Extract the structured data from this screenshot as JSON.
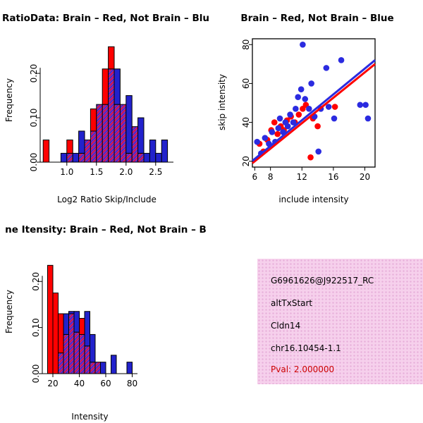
{
  "figure": {
    "background": "#FFFFFF"
  },
  "chart_data": [
    {
      "id": "ratio_hist",
      "type": "bar",
      "subtype": "overlaid_histogram",
      "title": "RatioData: Brain – Red, Not Brain – Blu",
      "xlabel": "Log2 Ratio Skip/Include",
      "ylabel": "Frequency",
      "xlim": [
        0.55,
        2.8
      ],
      "ylim": [
        0,
        0.27
      ],
      "bin_start": 0.6,
      "bin_width": 0.1,
      "xtick_vals": [
        1.0,
        1.5,
        2.0,
        2.5
      ],
      "xtick_labels": [
        "1.0",
        "1.5",
        "2.0",
        "2.5"
      ],
      "ytick_vals": [
        0,
        0.1,
        0.2
      ],
      "ytick_labels": [
        "0.00",
        "0.10",
        "0.20"
      ],
      "overlap_color": "#8D2FB8",
      "series": [
        {
          "name": "brain",
          "color": "#FF0000",
          "values": [
            0.05,
            0,
            0,
            0,
            0.05,
            0,
            0.02,
            0.05,
            0.12,
            0.13,
            0.21,
            0.26,
            0.13,
            0.13,
            0.02,
            0.08,
            0.02,
            0,
            0,
            0,
            0
          ]
        },
        {
          "name": "not-brain",
          "color": "#2222CC",
          "values": [
            0,
            0,
            0,
            0.02,
            0.02,
            0.02,
            0.07,
            0.05,
            0.07,
            0.13,
            0.13,
            0.21,
            0.21,
            0.13,
            0.15,
            0.08,
            0.1,
            0.02,
            0.05,
            0.02,
            0.05
          ]
        }
      ]
    },
    {
      "id": "scatter",
      "type": "scatter",
      "title": "Brain – Red, Not Brain – Blue",
      "xlabel": "include intensity",
      "ylabel": "skip intensity",
      "xlim": [
        5.7,
        21.3
      ],
      "ylim": [
        17,
        83
      ],
      "xtick_vals": [
        6,
        8,
        12,
        16,
        20
      ],
      "xtick_labels": [
        "6",
        "8",
        "12",
        "16",
        "20"
      ],
      "ytick_vals": [
        20,
        40,
        60,
        80
      ],
      "ytick_labels": [
        "20",
        "40",
        "60",
        "80"
      ],
      "series": [
        {
          "name": "brain",
          "color": "#FF0000",
          "points": [
            [
              6.6,
              29
            ],
            [
              7.1,
              25
            ],
            [
              7.6,
              31
            ],
            [
              8.1,
              36
            ],
            [
              8.5,
              40
            ],
            [
              8.9,
              34
            ],
            [
              9.3,
              38
            ],
            [
              9.7,
              36
            ],
            [
              10.1,
              41
            ],
            [
              10.6,
              43
            ],
            [
              11.1,
              40
            ],
            [
              11.6,
              44
            ],
            [
              12.1,
              47
            ],
            [
              12.5,
              49
            ],
            [
              13.1,
              22
            ],
            [
              13.4,
              42
            ],
            [
              14.0,
              38
            ],
            [
              16.2,
              48
            ]
          ],
          "trend_line": [
            [
              5.7,
              19.0
            ],
            [
              21.3,
              70.0
            ]
          ]
        },
        {
          "name": "not-brain",
          "color": "#2B2BE0",
          "points": [
            [
              6.3,
              30
            ],
            [
              6.8,
              24
            ],
            [
              7.3,
              32
            ],
            [
              7.8,
              29
            ],
            [
              8.2,
              35
            ],
            [
              8.6,
              30
            ],
            [
              9.0,
              37
            ],
            [
              9.2,
              42
            ],
            [
              9.6,
              35
            ],
            [
              9.9,
              40
            ],
            [
              10.2,
              38
            ],
            [
              10.5,
              44
            ],
            [
              10.9,
              40
            ],
            [
              11.2,
              47
            ],
            [
              11.5,
              53
            ],
            [
              11.9,
              57
            ],
            [
              12.1,
              80
            ],
            [
              12.4,
              52
            ],
            [
              12.9,
              47
            ],
            [
              13.2,
              60
            ],
            [
              13.6,
              43
            ],
            [
              14.1,
              25
            ],
            [
              14.4,
              47
            ],
            [
              15.1,
              68
            ],
            [
              15.4,
              48
            ],
            [
              16.1,
              42
            ],
            [
              17.0,
              72
            ],
            [
              19.4,
              49
            ],
            [
              20.1,
              49
            ],
            [
              20.4,
              42
            ]
          ],
          "trend_line": [
            [
              5.7,
              20.2
            ],
            [
              21.3,
              72.0
            ]
          ]
        }
      ]
    },
    {
      "id": "intensity_hist",
      "type": "bar",
      "subtype": "overlaid_histogram",
      "title": "ne Itensity: Brain – Red, Not Brain – B",
      "xlabel": "Intensity",
      "ylabel": "Frequency",
      "xlim": [
        12,
        84
      ],
      "ylim": [
        0,
        0.26
      ],
      "bin_start": 16,
      "bin_width": 4,
      "xtick_vals": [
        20,
        40,
        60,
        80
      ],
      "xtick_labels": [
        "20",
        "40",
        "60",
        "80"
      ],
      "ytick_vals": [
        0,
        0.1,
        0.2
      ],
      "ytick_labels": [
        "0.00",
        "0.10",
        "0.20"
      ],
      "overlap_color": "#8D2FB8",
      "series": [
        {
          "name": "brain",
          "color": "#FF0000",
          "values": [
            0.235,
            0.175,
            0.13,
            0.085,
            0.13,
            0.09,
            0.12,
            0.06,
            0.025,
            0.025,
            0,
            0,
            0,
            0,
            0,
            0,
            0
          ]
        },
        {
          "name": "not-brain",
          "color": "#2222CC",
          "values": [
            0,
            0,
            0.045,
            0.13,
            0.135,
            0.135,
            0.085,
            0.135,
            0.085,
            0.025,
            0.025,
            0,
            0.04,
            0,
            0,
            0.025,
            0
          ]
        }
      ]
    }
  ],
  "info_box": {
    "background": "#F6D0EC",
    "lines": [
      "G6961626@J922517_RC",
      "altTxStart",
      "Cldn14",
      "chr16.10454-1.1"
    ],
    "pval_label": "Pval: 2.000000",
    "pval_color": "#CC0000",
    "text_color": "#000000"
  }
}
